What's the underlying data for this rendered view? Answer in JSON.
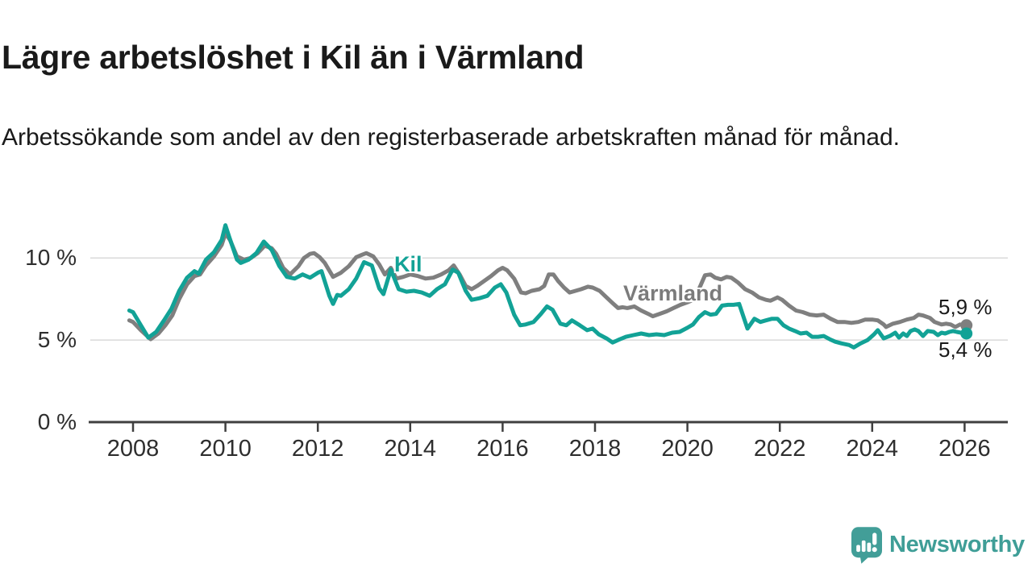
{
  "header": {
    "title": "Lägre arbetslöshet i Kil än i Värmland",
    "subtitle": "Arbetssökande som andel av den registerbaserade arbetskraften månad för månad."
  },
  "chart_data": {
    "type": "line",
    "title": "Lägre arbetslöshet i Kil än i Värmland",
    "xlabel": "",
    "ylabel": "Arbetssökande som andel av den registerbaserade arbetskraften (%)",
    "grid": "horizontal",
    "legend_position": "inline-labels",
    "x_axis": {
      "range": [
        2007.9,
        2026.1
      ],
      "ticks": [
        {
          "value": 2008,
          "label": "2008"
        },
        {
          "value": 2010,
          "label": "2010"
        },
        {
          "value": 2012,
          "label": "2012"
        },
        {
          "value": 2014,
          "label": "2014"
        },
        {
          "value": 2016,
          "label": "2016"
        },
        {
          "value": 2018,
          "label": "2018"
        },
        {
          "value": 2020,
          "label": "2020"
        },
        {
          "value": 2022,
          "label": "2022"
        },
        {
          "value": 2024,
          "label": "2024"
        },
        {
          "value": 2026,
          "label": "2026"
        }
      ]
    },
    "y_axis": {
      "range": [
        0,
        12.5
      ],
      "unit": "%",
      "ticks": [
        {
          "value": 0,
          "label": "0 %"
        },
        {
          "value": 5,
          "label": "5 %"
        },
        {
          "value": 10,
          "label": "10 %"
        }
      ]
    },
    "series": [
      {
        "name": "Värmland",
        "color": "#7f7f7f",
        "end_label": "5,9 %",
        "end_value": 5.9,
        "points": [
          [
            2007.92,
            6.2
          ],
          [
            2008.0,
            6.1
          ],
          [
            2008.17,
            5.6
          ],
          [
            2008.38,
            5.05
          ],
          [
            2008.55,
            5.4
          ],
          [
            2008.7,
            5.9
          ],
          [
            2008.85,
            6.5
          ],
          [
            2009.0,
            7.5
          ],
          [
            2009.17,
            8.4
          ],
          [
            2009.33,
            8.9
          ],
          [
            2009.45,
            9.0
          ],
          [
            2009.58,
            9.55
          ],
          [
            2009.75,
            10.1
          ],
          [
            2009.92,
            10.8
          ],
          [
            2010.0,
            11.5
          ],
          [
            2010.1,
            11.1
          ],
          [
            2010.25,
            10.1
          ],
          [
            2010.4,
            9.9
          ],
          [
            2010.55,
            10.0
          ],
          [
            2010.7,
            10.3
          ],
          [
            2010.85,
            10.75
          ],
          [
            2011.0,
            10.6
          ],
          [
            2011.1,
            10.25
          ],
          [
            2011.25,
            9.4
          ],
          [
            2011.4,
            9.0
          ],
          [
            2011.58,
            9.5
          ],
          [
            2011.7,
            10.0
          ],
          [
            2011.83,
            10.25
          ],
          [
            2011.92,
            10.3
          ],
          [
            2012.04,
            10.05
          ],
          [
            2012.15,
            9.7
          ],
          [
            2012.33,
            8.85
          ],
          [
            2012.5,
            9.1
          ],
          [
            2012.67,
            9.5
          ],
          [
            2012.83,
            10.05
          ],
          [
            2012.96,
            10.2
          ],
          [
            2013.05,
            10.3
          ],
          [
            2013.2,
            10.1
          ],
          [
            2013.33,
            9.6
          ],
          [
            2013.45,
            9.0
          ],
          [
            2013.58,
            9.4
          ],
          [
            2013.7,
            8.75
          ],
          [
            2013.85,
            8.85
          ],
          [
            2014.0,
            9.0
          ],
          [
            2014.17,
            8.9
          ],
          [
            2014.33,
            8.75
          ],
          [
            2014.5,
            8.8
          ],
          [
            2014.67,
            9.0
          ],
          [
            2014.83,
            9.25
          ],
          [
            2014.94,
            9.55
          ],
          [
            2015.07,
            9.0
          ],
          [
            2015.2,
            8.3
          ],
          [
            2015.33,
            8.1
          ],
          [
            2015.45,
            8.3
          ],
          [
            2015.6,
            8.6
          ],
          [
            2015.75,
            8.9
          ],
          [
            2015.9,
            9.25
          ],
          [
            2016.0,
            9.4
          ],
          [
            2016.1,
            9.25
          ],
          [
            2016.25,
            8.75
          ],
          [
            2016.4,
            7.9
          ],
          [
            2016.5,
            7.85
          ],
          [
            2016.63,
            8.0
          ],
          [
            2016.8,
            8.1
          ],
          [
            2016.9,
            8.3
          ],
          [
            2017.0,
            9.0
          ],
          [
            2017.1,
            9.0
          ],
          [
            2017.2,
            8.6
          ],
          [
            2017.33,
            8.2
          ],
          [
            2017.45,
            7.9
          ],
          [
            2017.58,
            8.0
          ],
          [
            2017.7,
            8.1
          ],
          [
            2017.85,
            8.25
          ],
          [
            2017.95,
            8.2
          ],
          [
            2018.1,
            8.0
          ],
          [
            2018.25,
            7.6
          ],
          [
            2018.4,
            7.2
          ],
          [
            2018.5,
            6.95
          ],
          [
            2018.6,
            7.0
          ],
          [
            2018.7,
            6.95
          ],
          [
            2018.85,
            7.05
          ],
          [
            2019.0,
            6.8
          ],
          [
            2019.15,
            6.6
          ],
          [
            2019.25,
            6.45
          ],
          [
            2019.4,
            6.6
          ],
          [
            2019.55,
            6.75
          ],
          [
            2019.7,
            6.95
          ],
          [
            2019.85,
            7.15
          ],
          [
            2020.0,
            7.3
          ],
          [
            2020.12,
            7.45
          ],
          [
            2020.25,
            8.1
          ],
          [
            2020.38,
            8.95
          ],
          [
            2020.5,
            9.0
          ],
          [
            2020.6,
            8.8
          ],
          [
            2020.73,
            8.7
          ],
          [
            2020.85,
            8.85
          ],
          [
            2020.95,
            8.8
          ],
          [
            2021.1,
            8.5
          ],
          [
            2021.25,
            8.1
          ],
          [
            2021.4,
            7.9
          ],
          [
            2021.55,
            7.6
          ],
          [
            2021.7,
            7.45
          ],
          [
            2021.8,
            7.4
          ],
          [
            2021.95,
            7.6
          ],
          [
            2022.05,
            7.45
          ],
          [
            2022.2,
            7.1
          ],
          [
            2022.35,
            6.8
          ],
          [
            2022.5,
            6.7
          ],
          [
            2022.65,
            6.55
          ],
          [
            2022.8,
            6.5
          ],
          [
            2022.95,
            6.55
          ],
          [
            2023.1,
            6.3
          ],
          [
            2023.25,
            6.1
          ],
          [
            2023.4,
            6.1
          ],
          [
            2023.55,
            6.05
          ],
          [
            2023.7,
            6.1
          ],
          [
            2023.85,
            6.25
          ],
          [
            2024.0,
            6.25
          ],
          [
            2024.12,
            6.2
          ],
          [
            2024.25,
            5.95
          ],
          [
            2024.3,
            5.8
          ],
          [
            2024.45,
            6.0
          ],
          [
            2024.6,
            6.1
          ],
          [
            2024.75,
            6.25
          ],
          [
            2024.9,
            6.35
          ],
          [
            2025.0,
            6.55
          ],
          [
            2025.1,
            6.5
          ],
          [
            2025.25,
            6.35
          ],
          [
            2025.35,
            6.1
          ],
          [
            2025.5,
            5.95
          ],
          [
            2025.6,
            6.0
          ],
          [
            2025.7,
            5.95
          ],
          [
            2025.8,
            5.8
          ],
          [
            2025.9,
            5.95
          ],
          [
            2026.04,
            5.9
          ]
        ]
      },
      {
        "name": "Kil",
        "color": "#12a296",
        "end_label": "5,4 %",
        "end_value": 5.4,
        "points": [
          [
            2007.92,
            6.8
          ],
          [
            2008.0,
            6.7
          ],
          [
            2008.17,
            5.9
          ],
          [
            2008.33,
            5.15
          ],
          [
            2008.5,
            5.5
          ],
          [
            2008.67,
            6.2
          ],
          [
            2008.83,
            6.9
          ],
          [
            2009.0,
            8.0
          ],
          [
            2009.17,
            8.8
          ],
          [
            2009.33,
            9.2
          ],
          [
            2009.42,
            9.05
          ],
          [
            2009.58,
            9.9
          ],
          [
            2009.75,
            10.35
          ],
          [
            2009.92,
            11.1
          ],
          [
            2010.0,
            12.0
          ],
          [
            2010.08,
            11.3
          ],
          [
            2010.25,
            9.9
          ],
          [
            2010.33,
            9.7
          ],
          [
            2010.5,
            9.9
          ],
          [
            2010.67,
            10.3
          ],
          [
            2010.83,
            11.0
          ],
          [
            2011.0,
            10.5
          ],
          [
            2011.17,
            9.5
          ],
          [
            2011.33,
            8.85
          ],
          [
            2011.5,
            8.75
          ],
          [
            2011.67,
            9.0
          ],
          [
            2011.83,
            8.8
          ],
          [
            2012.0,
            9.1
          ],
          [
            2012.08,
            9.2
          ],
          [
            2012.25,
            7.7
          ],
          [
            2012.33,
            7.2
          ],
          [
            2012.42,
            7.75
          ],
          [
            2012.5,
            7.7
          ],
          [
            2012.67,
            8.1
          ],
          [
            2012.83,
            8.75
          ],
          [
            2013.0,
            9.75
          ],
          [
            2013.17,
            9.55
          ],
          [
            2013.33,
            8.15
          ],
          [
            2013.42,
            7.8
          ],
          [
            2013.58,
            9.3
          ],
          [
            2013.75,
            8.1
          ],
          [
            2013.92,
            7.95
          ],
          [
            2014.08,
            8.0
          ],
          [
            2014.25,
            7.9
          ],
          [
            2014.42,
            7.7
          ],
          [
            2014.58,
            8.1
          ],
          [
            2014.75,
            8.4
          ],
          [
            2014.92,
            9.3
          ],
          [
            2015.04,
            9.1
          ],
          [
            2015.2,
            8.0
          ],
          [
            2015.33,
            7.45
          ],
          [
            2015.5,
            7.55
          ],
          [
            2015.67,
            7.7
          ],
          [
            2015.83,
            8.2
          ],
          [
            2015.96,
            8.4
          ],
          [
            2016.08,
            7.9
          ],
          [
            2016.25,
            6.55
          ],
          [
            2016.38,
            5.9
          ],
          [
            2016.5,
            5.95
          ],
          [
            2016.67,
            6.1
          ],
          [
            2016.83,
            6.6
          ],
          [
            2016.96,
            7.05
          ],
          [
            2017.08,
            6.85
          ],
          [
            2017.25,
            6.0
          ],
          [
            2017.38,
            5.9
          ],
          [
            2017.5,
            6.2
          ],
          [
            2017.67,
            5.9
          ],
          [
            2017.83,
            5.6
          ],
          [
            2017.95,
            5.7
          ],
          [
            2018.08,
            5.35
          ],
          [
            2018.25,
            5.1
          ],
          [
            2018.38,
            4.85
          ],
          [
            2018.5,
            5.0
          ],
          [
            2018.67,
            5.2
          ],
          [
            2018.83,
            5.3
          ],
          [
            2019.0,
            5.4
          ],
          [
            2019.17,
            5.3
          ],
          [
            2019.33,
            5.35
          ],
          [
            2019.5,
            5.3
          ],
          [
            2019.67,
            5.45
          ],
          [
            2019.83,
            5.5
          ],
          [
            2020.0,
            5.75
          ],
          [
            2020.12,
            5.95
          ],
          [
            2020.25,
            6.4
          ],
          [
            2020.38,
            6.7
          ],
          [
            2020.5,
            6.55
          ],
          [
            2020.62,
            6.6
          ],
          [
            2020.75,
            7.1
          ],
          [
            2020.88,
            7.15
          ],
          [
            2021.0,
            7.15
          ],
          [
            2021.12,
            7.2
          ],
          [
            2021.3,
            5.7
          ],
          [
            2021.45,
            6.3
          ],
          [
            2021.58,
            6.1
          ],
          [
            2021.7,
            6.2
          ],
          [
            2021.83,
            6.3
          ],
          [
            2021.95,
            6.3
          ],
          [
            2022.08,
            5.9
          ],
          [
            2022.2,
            5.7
          ],
          [
            2022.33,
            5.55
          ],
          [
            2022.45,
            5.4
          ],
          [
            2022.58,
            5.45
          ],
          [
            2022.7,
            5.2
          ],
          [
            2022.83,
            5.2
          ],
          [
            2022.95,
            5.25
          ],
          [
            2023.08,
            5.05
          ],
          [
            2023.2,
            4.9
          ],
          [
            2023.33,
            4.8
          ],
          [
            2023.5,
            4.7
          ],
          [
            2023.6,
            4.55
          ],
          [
            2023.75,
            4.8
          ],
          [
            2023.9,
            5.0
          ],
          [
            2024.04,
            5.35
          ],
          [
            2024.12,
            5.6
          ],
          [
            2024.25,
            5.1
          ],
          [
            2024.38,
            5.25
          ],
          [
            2024.5,
            5.45
          ],
          [
            2024.58,
            5.15
          ],
          [
            2024.67,
            5.4
          ],
          [
            2024.75,
            5.25
          ],
          [
            2024.83,
            5.55
          ],
          [
            2024.92,
            5.65
          ],
          [
            2025.0,
            5.55
          ],
          [
            2025.1,
            5.25
          ],
          [
            2025.2,
            5.55
          ],
          [
            2025.33,
            5.5
          ],
          [
            2025.42,
            5.3
          ],
          [
            2025.5,
            5.45
          ],
          [
            2025.58,
            5.4
          ],
          [
            2025.67,
            5.5
          ],
          [
            2025.75,
            5.55
          ],
          [
            2025.83,
            5.5
          ],
          [
            2025.92,
            5.45
          ],
          [
            2026.04,
            5.4
          ]
        ]
      }
    ]
  },
  "branding": {
    "name": "Newsworthy",
    "color": "#3f9e97"
  },
  "colors": {
    "kil_teal": "#12a296",
    "varmland_gray": "#7f7f7f",
    "gridline": "#dadada",
    "axis": "#3f3f3f",
    "text": "#1a1a1a"
  }
}
